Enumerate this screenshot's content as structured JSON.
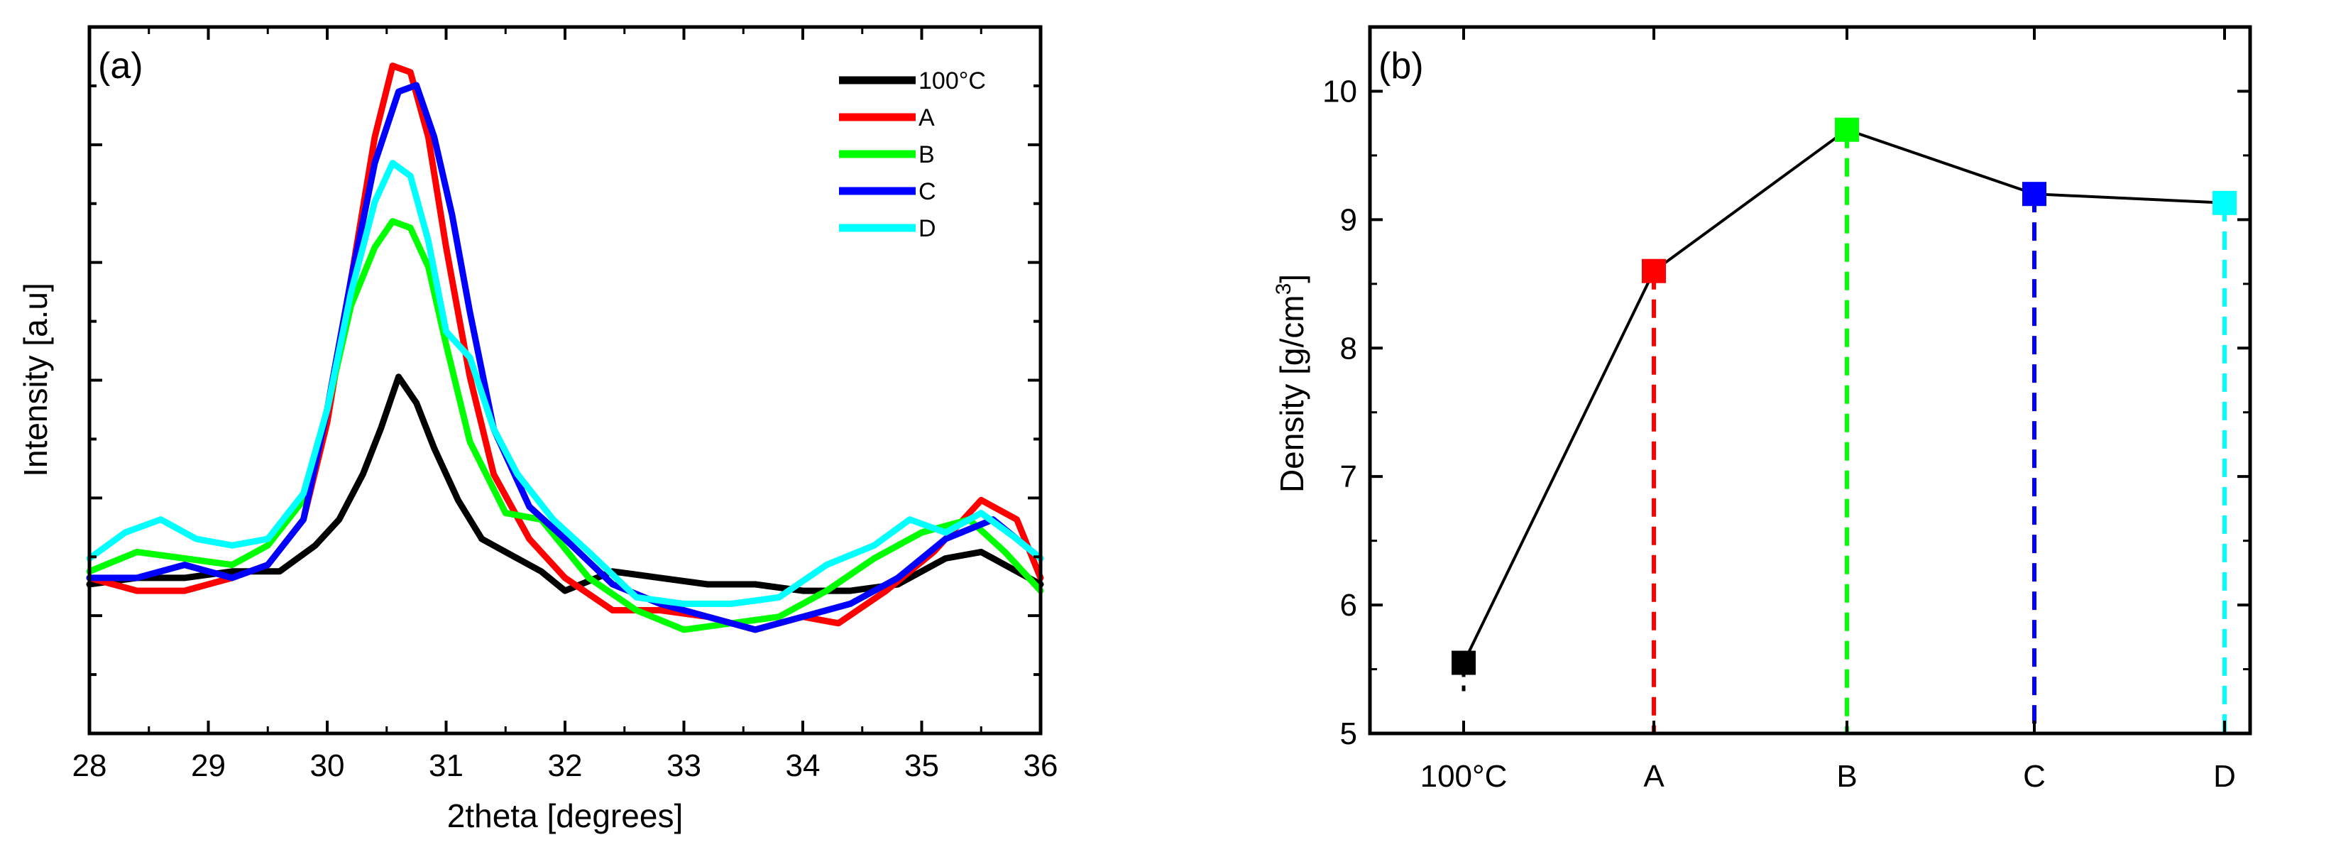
{
  "chart_data": [
    {
      "type": "line",
      "panel_label": "(a)",
      "title": "",
      "xlabel": "2theta [degrees]",
      "ylabel": "Intensity [a.u]",
      "xlim": [
        28,
        36
      ],
      "ylim": [
        0,
        1
      ],
      "xticks": [
        28,
        29,
        30,
        31,
        32,
        33,
        34,
        35,
        36
      ],
      "xtick_labels": [
        "28",
        "29",
        "30",
        "31",
        "32",
        "33",
        "34",
        "35",
        "36"
      ],
      "yticks_labeled": false,
      "legend_position": "top-right",
      "series": [
        {
          "name": "100°C",
          "color": "#000000",
          "x": [
            28.0,
            28.4,
            28.8,
            29.2,
            29.6,
            29.9,
            30.1,
            30.3,
            30.45,
            30.6,
            30.75,
            30.9,
            31.1,
            31.3,
            31.5,
            31.8,
            32.0,
            32.4,
            32.8,
            33.2,
            33.6,
            34.0,
            34.4,
            34.8,
            35.2,
            35.5,
            35.8,
            36.0
          ],
          "y": [
            0.23,
            0.24,
            0.24,
            0.25,
            0.25,
            0.29,
            0.33,
            0.4,
            0.47,
            0.55,
            0.51,
            0.44,
            0.36,
            0.3,
            0.28,
            0.25,
            0.22,
            0.25,
            0.24,
            0.23,
            0.23,
            0.22,
            0.22,
            0.23,
            0.27,
            0.28,
            0.25,
            0.23
          ]
        },
        {
          "name": "A",
          "color": "#ff0000",
          "x": [
            28.0,
            28.4,
            28.8,
            29.2,
            29.5,
            29.8,
            30.0,
            30.2,
            30.4,
            30.55,
            30.7,
            30.85,
            31.0,
            31.2,
            31.4,
            31.7,
            32.0,
            32.4,
            32.8,
            33.2,
            33.6,
            34.0,
            34.3,
            34.7,
            35.1,
            35.5,
            35.8,
            36.0
          ],
          "y": [
            0.24,
            0.22,
            0.22,
            0.24,
            0.26,
            0.33,
            0.48,
            0.7,
            0.92,
            1.03,
            1.02,
            0.92,
            0.75,
            0.55,
            0.4,
            0.3,
            0.24,
            0.19,
            0.19,
            0.18,
            0.16,
            0.18,
            0.17,
            0.22,
            0.28,
            0.36,
            0.33,
            0.24
          ]
        },
        {
          "name": "B",
          "color": "#00ff00",
          "x": [
            28.0,
            28.4,
            28.8,
            29.2,
            29.5,
            29.8,
            30.0,
            30.2,
            30.4,
            30.55,
            30.7,
            30.85,
            31.0,
            31.2,
            31.5,
            31.8,
            32.2,
            32.6,
            33.0,
            33.4,
            33.8,
            34.2,
            34.6,
            35.0,
            35.4,
            35.7,
            36.0
          ],
          "y": [
            0.25,
            0.28,
            0.27,
            0.26,
            0.29,
            0.36,
            0.5,
            0.66,
            0.75,
            0.79,
            0.78,
            0.72,
            0.6,
            0.45,
            0.34,
            0.33,
            0.24,
            0.19,
            0.16,
            0.17,
            0.18,
            0.22,
            0.27,
            0.31,
            0.33,
            0.28,
            0.22
          ]
        },
        {
          "name": "C",
          "color": "#0000ff",
          "x": [
            28.0,
            28.4,
            28.8,
            29.2,
            29.5,
            29.8,
            30.0,
            30.2,
            30.4,
            30.6,
            30.75,
            30.9,
            31.05,
            31.2,
            31.4,
            31.7,
            32.0,
            32.4,
            32.8,
            33.2,
            33.6,
            34.0,
            34.4,
            34.8,
            35.2,
            35.6,
            35.8,
            36.0
          ],
          "y": [
            0.24,
            0.24,
            0.26,
            0.24,
            0.26,
            0.33,
            0.5,
            0.7,
            0.88,
            0.99,
            1.0,
            0.92,
            0.8,
            0.65,
            0.47,
            0.35,
            0.3,
            0.23,
            0.2,
            0.18,
            0.16,
            0.18,
            0.2,
            0.24,
            0.3,
            0.33,
            0.3,
            0.27
          ]
        },
        {
          "name": "D",
          "color": "#00ffff",
          "x": [
            28.0,
            28.3,
            28.6,
            28.9,
            29.2,
            29.5,
            29.8,
            30.0,
            30.2,
            30.4,
            30.55,
            30.7,
            30.85,
            31.0,
            31.2,
            31.4,
            31.6,
            31.9,
            32.2,
            32.6,
            33.0,
            33.4,
            33.8,
            34.2,
            34.6,
            34.9,
            35.2,
            35.5,
            35.8,
            36.0
          ],
          "y": [
            0.27,
            0.31,
            0.33,
            0.3,
            0.29,
            0.3,
            0.37,
            0.5,
            0.68,
            0.82,
            0.88,
            0.86,
            0.76,
            0.62,
            0.58,
            0.47,
            0.4,
            0.33,
            0.28,
            0.21,
            0.2,
            0.2,
            0.21,
            0.26,
            0.29,
            0.33,
            0.31,
            0.34,
            0.3,
            0.27
          ]
        }
      ]
    },
    {
      "type": "scatter",
      "panel_label": "(b)",
      "title": "",
      "xlabel": "",
      "ylabel": "Density [g/cm³]",
      "ylabel_main": "Density [g/cm",
      "ylabel_sup": "3",
      "ylabel_end": "]",
      "ylim": [
        5,
        10.5
      ],
      "yticks": [
        5,
        6,
        7,
        8,
        9,
        10
      ],
      "ytick_labels": [
        "5",
        "6",
        "7",
        "8",
        "9",
        "10"
      ],
      "categories": [
        "100°C",
        "A",
        "B",
        "C",
        "D"
      ],
      "values": [
        5.55,
        8.6,
        9.7,
        9.2,
        9.13
      ],
      "colors": [
        "#000000",
        "#ff0000",
        "#00ff00",
        "#0000ff",
        "#00ffff"
      ],
      "connected_line": true,
      "dropdown_lines": true
    }
  ]
}
